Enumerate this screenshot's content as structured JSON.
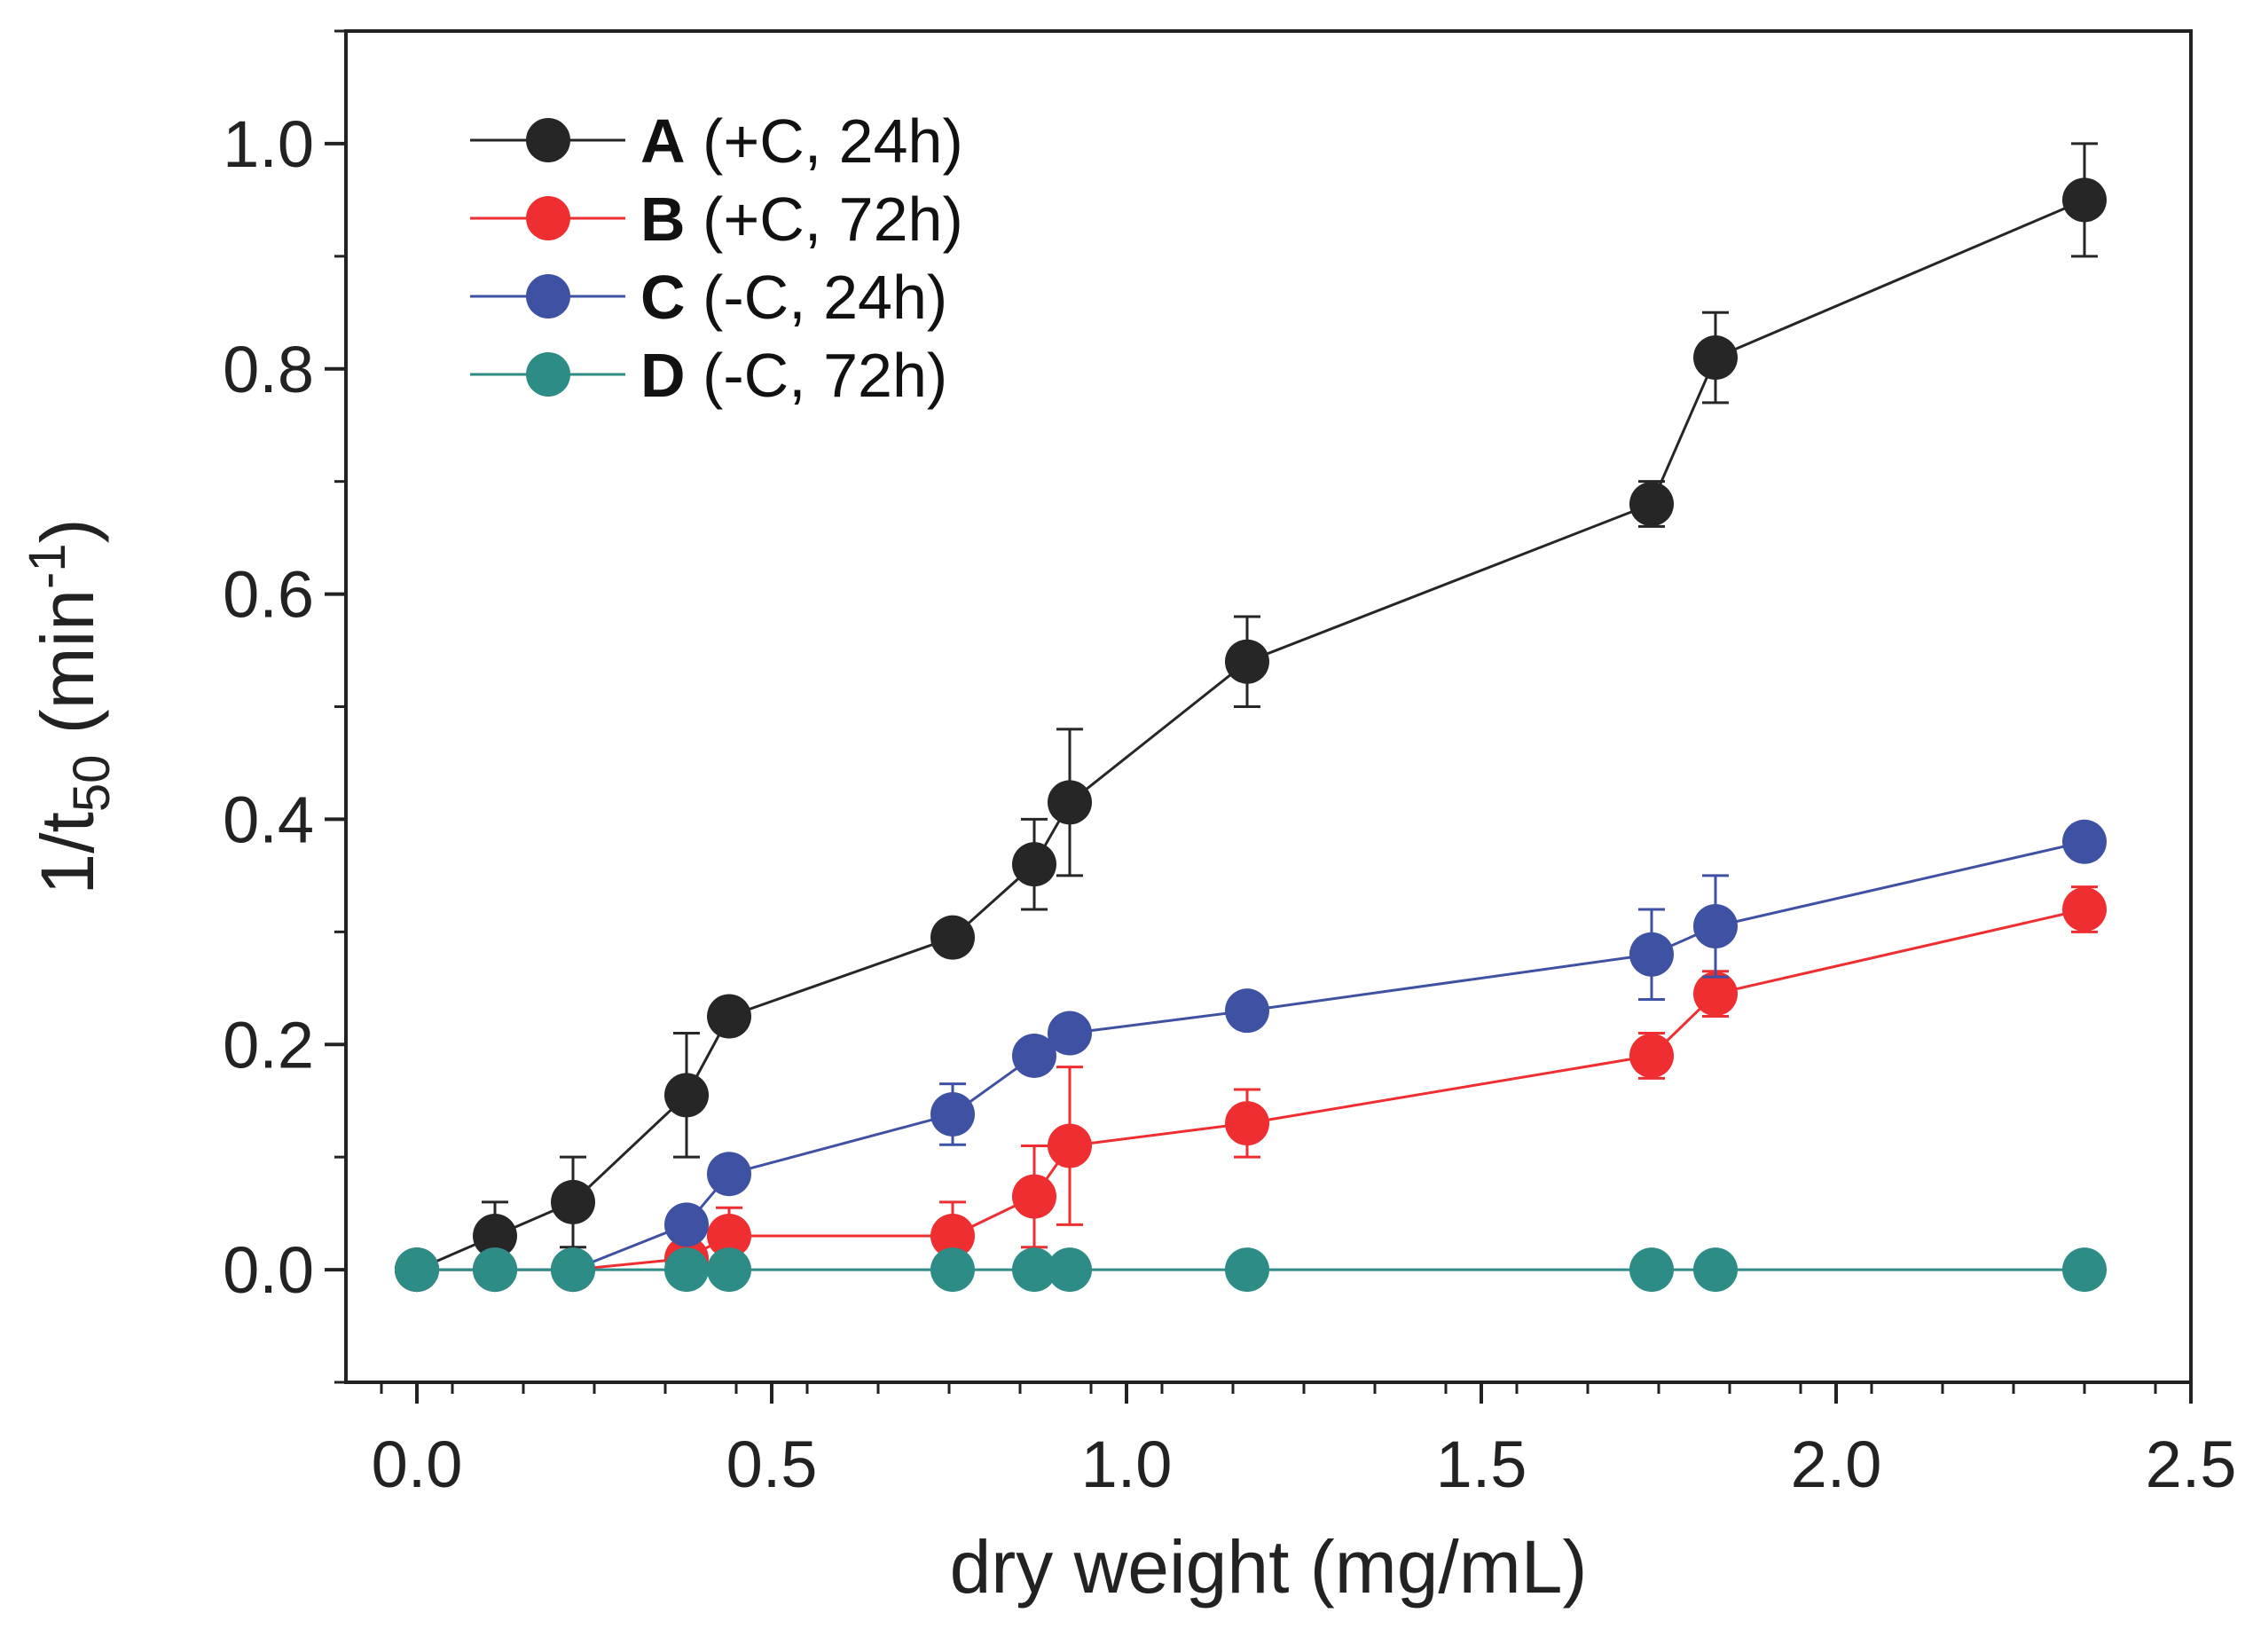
{
  "chart_data": {
    "type": "line",
    "title": "",
    "xlabel": "dry weight (mg/mL)",
    "ylabel_main": "1/t",
    "ylabel_subscript": "50",
    "ylabel_unit_open": " (min",
    "ylabel_superscript": "-1",
    "ylabel_unit_close": ")",
    "xlim": [
      -0.1,
      2.5
    ],
    "ylim": [
      -0.1,
      1.1
    ],
    "xticks": [
      0.0,
      0.5,
      1.0,
      1.5,
      2.0,
      2.5
    ],
    "xtick_labels": [
      "0.0",
      "0.5",
      "1.0",
      "1.5",
      "2.0",
      "2.5"
    ],
    "yticks": [
      0.0,
      0.2,
      0.4,
      0.6,
      0.8,
      1.0
    ],
    "ytick_labels": [
      "0.0",
      "0.2",
      "0.4",
      "0.6",
      "0.8",
      "1.0"
    ],
    "grid": false,
    "legend_position": "top-left",
    "series": [
      {
        "name": "A",
        "label_rest": " (+C, 24h)",
        "color": "#262626",
        "x": [
          0.0,
          0.11,
          0.22,
          0.38,
          0.44,
          0.755,
          0.87,
          0.92,
          1.17,
          1.74,
          1.83,
          2.35
        ],
        "y": [
          0.0,
          0.03,
          0.06,
          0.155,
          0.225,
          0.295,
          0.36,
          0.415,
          0.54,
          0.68,
          0.81,
          0.95
        ],
        "err": [
          0,
          0.03,
          0.04,
          0.055,
          0,
          0,
          0.04,
          0.065,
          0.04,
          0.02,
          0.04,
          0.05
        ]
      },
      {
        "name": "B",
        "label_rest": " (+C, 72h)",
        "color": "#ee2e31",
        "x": [
          0.0,
          0.11,
          0.22,
          0.38,
          0.44,
          0.755,
          0.87,
          0.92,
          1.17,
          1.74,
          1.83,
          2.35
        ],
        "y": [
          0.0,
          0.0,
          0.0,
          0.01,
          0.03,
          0.03,
          0.065,
          0.11,
          0.13,
          0.19,
          0.245,
          0.32
        ],
        "err": [
          0,
          0,
          0,
          0.02,
          0.025,
          0.03,
          0.045,
          0.07,
          0.03,
          0.02,
          0.02,
          0.02
        ]
      },
      {
        "name": "C",
        "label_rest": " (-C, 24h)",
        "color": "#3f51a3",
        "x": [
          0.0,
          0.11,
          0.22,
          0.38,
          0.44,
          0.755,
          0.87,
          0.92,
          1.17,
          1.74,
          1.83,
          2.35
        ],
        "y": [
          0.0,
          0.0,
          0.0,
          0.04,
          0.085,
          0.138,
          0.19,
          0.21,
          0.23,
          0.28,
          0.305,
          0.38
        ],
        "err": [
          0,
          0,
          0,
          0,
          0,
          0.027,
          0,
          0,
          0,
          0.04,
          0.045,
          0.015
        ]
      },
      {
        "name": "D",
        "label_rest": " (-C, 72h)",
        "color": "#2d8c86",
        "x": [
          0.0,
          0.11,
          0.22,
          0.38,
          0.44,
          0.755,
          0.87,
          0.92,
          1.17,
          1.74,
          1.83,
          2.35
        ],
        "y": [
          0.0,
          0.0,
          0.0,
          0.0,
          0.0,
          0.0,
          0.0,
          0.0,
          0.0,
          0.0,
          0.0,
          0.0
        ],
        "err": [
          0,
          0,
          0,
          0,
          0,
          0,
          0,
          0,
          0,
          0,
          0,
          0
        ]
      }
    ]
  }
}
